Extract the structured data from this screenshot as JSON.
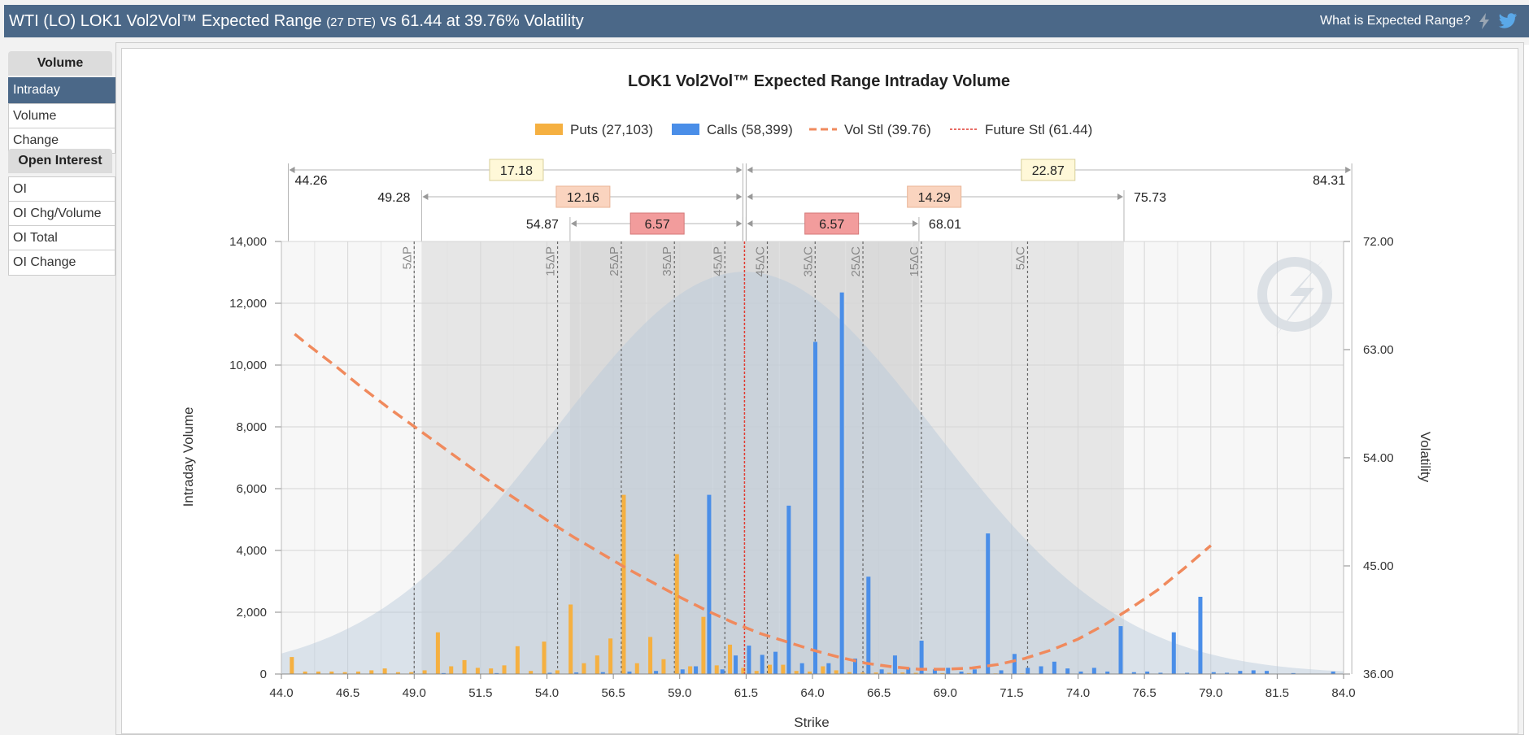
{
  "header": {
    "title_main": "WTI (LO) LOK1 Vol2Vol™ Expected Range ",
    "title_dte": "(27 DTE)",
    "title_rest": " vs 61.44 at 39.76% Volatility",
    "help_link": "What is Expected Range?",
    "icons": [
      "lightning-icon",
      "twitter-icon"
    ]
  },
  "sidebar": {
    "volume_header": "Volume",
    "volume_items": [
      "Intraday",
      "Volume",
      "Change"
    ],
    "active_item": "Intraday",
    "oi_header": "Open Interest",
    "oi_items": [
      "OI",
      "OI Chg/Volume",
      "OI Total",
      "OI Change"
    ]
  },
  "chart_data": {
    "type": "bar",
    "title": "LOK1 Vol2Vol™ Expected Range Intraday Volume",
    "xlabel": "Strike",
    "ylabel": "Intraday Volume",
    "y2label": "Volatility",
    "xlim": [
      44.0,
      84.0
    ],
    "ylim": [
      0,
      14000
    ],
    "y2lim": [
      36.0,
      72.0
    ],
    "x_ticks": [
      "44.0",
      "46.5",
      "49.0",
      "51.5",
      "54.0",
      "56.5",
      "59.0",
      "61.5",
      "64.0",
      "66.5",
      "69.0",
      "71.5",
      "74.0",
      "76.5",
      "79.0",
      "81.5",
      "84.0"
    ],
    "y_ticks": [
      "0",
      "2,000",
      "4,000",
      "6,000",
      "8,000",
      "10,000",
      "12,000",
      "14,000"
    ],
    "y2_ticks": [
      "36.00",
      "45.00",
      "54.00",
      "63.00",
      "72.00"
    ],
    "grid": true,
    "legend_position": "top",
    "legend": [
      {
        "label": "Puts (27,103)",
        "kind": "bar",
        "color": "#f5b041"
      },
      {
        "label": "Calls (58,399)",
        "kind": "bar",
        "color": "#4a8ee8"
      },
      {
        "label": "Vol Stl (39.76)",
        "kind": "dash",
        "color": "#f08a5d"
      },
      {
        "label": "Future Stl (61.44)",
        "kind": "dot",
        "color": "#e03c31"
      }
    ],
    "future_settle": 61.44,
    "series": [
      {
        "name": "Puts",
        "color": "#f5b041",
        "points": [
          [
            44.5,
            550
          ],
          [
            45.0,
            80
          ],
          [
            45.5,
            80
          ],
          [
            46.0,
            80
          ],
          [
            46.5,
            60
          ],
          [
            47.0,
            80
          ],
          [
            47.5,
            120
          ],
          [
            48.0,
            180
          ],
          [
            48.5,
            60
          ],
          [
            49.0,
            60
          ],
          [
            49.5,
            120
          ],
          [
            50.0,
            1350
          ],
          [
            50.5,
            250
          ],
          [
            51.0,
            450
          ],
          [
            51.5,
            200
          ],
          [
            52.0,
            180
          ],
          [
            52.5,
            280
          ],
          [
            53.0,
            900
          ],
          [
            53.5,
            100
          ],
          [
            54.0,
            1050
          ],
          [
            54.5,
            120
          ],
          [
            55.0,
            2250
          ],
          [
            55.5,
            350
          ],
          [
            56.0,
            600
          ],
          [
            56.5,
            1150
          ],
          [
            57.0,
            5800
          ],
          [
            57.5,
            350
          ],
          [
            58.0,
            1200
          ],
          [
            58.5,
            480
          ],
          [
            59.0,
            3880
          ],
          [
            59.5,
            250
          ],
          [
            60.0,
            1850
          ],
          [
            60.5,
            280
          ],
          [
            61.0,
            950
          ],
          [
            61.5,
            200
          ],
          [
            62.0,
            100
          ],
          [
            62.5,
            300
          ],
          [
            63.0,
            300
          ],
          [
            63.5,
            100
          ],
          [
            64.0,
            80
          ],
          [
            64.5,
            250
          ],
          [
            65.0,
            120
          ],
          [
            65.5,
            60
          ],
          [
            66.0,
            50
          ],
          [
            66.5,
            50
          ],
          [
            67.0,
            40
          ],
          [
            67.5,
            50
          ],
          [
            68.0,
            40
          ],
          [
            69.0,
            30
          ],
          [
            70.0,
            30
          ],
          [
            71.0,
            20
          ],
          [
            72.0,
            20
          ]
        ]
      },
      {
        "name": "Calls",
        "color": "#4a8ee8",
        "points": [
          [
            50.0,
            30
          ],
          [
            52.0,
            30
          ],
          [
            54.0,
            40
          ],
          [
            55.0,
            50
          ],
          [
            56.0,
            60
          ],
          [
            57.0,
            80
          ],
          [
            58.0,
            100
          ],
          [
            59.0,
            150
          ],
          [
            59.5,
            250
          ],
          [
            60.0,
            5800
          ],
          [
            60.5,
            150
          ],
          [
            61.0,
            600
          ],
          [
            61.5,
            920
          ],
          [
            62.0,
            620
          ],
          [
            62.5,
            720
          ],
          [
            63.0,
            5450
          ],
          [
            63.5,
            350
          ],
          [
            64.0,
            10750
          ],
          [
            64.5,
            350
          ],
          [
            65.0,
            12350
          ],
          [
            65.5,
            500
          ],
          [
            66.0,
            3150
          ],
          [
            66.5,
            150
          ],
          [
            67.0,
            600
          ],
          [
            67.5,
            200
          ],
          [
            68.0,
            1080
          ],
          [
            68.5,
            150
          ],
          [
            69.0,
            200
          ],
          [
            69.5,
            80
          ],
          [
            70.0,
            150
          ],
          [
            70.5,
            4550
          ],
          [
            71.0,
            120
          ],
          [
            71.5,
            650
          ],
          [
            72.0,
            200
          ],
          [
            72.5,
            250
          ],
          [
            73.0,
            400
          ],
          [
            73.5,
            180
          ],
          [
            74.0,
            80
          ],
          [
            74.5,
            200
          ],
          [
            75.0,
            80
          ],
          [
            75.5,
            1550
          ],
          [
            76.0,
            60
          ],
          [
            76.5,
            80
          ],
          [
            77.0,
            40
          ],
          [
            77.5,
            1350
          ],
          [
            78.0,
            40
          ],
          [
            78.5,
            2500
          ],
          [
            79.0,
            60
          ],
          [
            79.5,
            40
          ],
          [
            80.0,
            100
          ],
          [
            80.5,
            120
          ],
          [
            81.0,
            100
          ],
          [
            82.0,
            30
          ],
          [
            83.5,
            80
          ]
        ]
      },
      {
        "name": "Vol Stl",
        "axis": "y2",
        "color": "#f08a5d",
        "points": [
          [
            44.5,
            64.3
          ],
          [
            45.0,
            63.4
          ],
          [
            46.0,
            61.7
          ],
          [
            47.0,
            59.9
          ],
          [
            48.0,
            58.2
          ],
          [
            49.0,
            56.6
          ],
          [
            50.0,
            55.0
          ],
          [
            51.0,
            53.4
          ],
          [
            52.0,
            51.8
          ],
          [
            53.0,
            50.3
          ],
          [
            54.0,
            48.8
          ],
          [
            55.0,
            47.4
          ],
          [
            56.0,
            46.1
          ],
          [
            57.0,
            44.8
          ],
          [
            58.0,
            43.6
          ],
          [
            59.0,
            42.4
          ],
          [
            60.0,
            41.3
          ],
          [
            61.0,
            40.3
          ],
          [
            62.0,
            39.4
          ],
          [
            63.0,
            38.7
          ],
          [
            64.0,
            38.0
          ],
          [
            65.0,
            37.4
          ],
          [
            66.0,
            36.9
          ],
          [
            67.0,
            36.6
          ],
          [
            68.0,
            36.4
          ],
          [
            69.0,
            36.4
          ],
          [
            70.0,
            36.5
          ],
          [
            71.0,
            36.8
          ],
          [
            72.0,
            37.3
          ],
          [
            73.0,
            38.0
          ],
          [
            74.0,
            38.9
          ],
          [
            75.0,
            40.1
          ],
          [
            76.0,
            41.5
          ],
          [
            77.0,
            43.0
          ],
          [
            78.0,
            44.8
          ],
          [
            79.0,
            46.7
          ]
        ]
      }
    ],
    "delta_lines": [
      {
        "label": "5ΔP",
        "x": 49.0
      },
      {
        "label": "15ΔP",
        "x": 54.4
      },
      {
        "label": "25ΔP",
        "x": 56.8
      },
      {
        "label": "35ΔP",
        "x": 58.8
      },
      {
        "label": "45ΔP",
        "x": 60.7
      },
      {
        "label": "45ΔC",
        "x": 62.3
      },
      {
        "label": "35ΔC",
        "x": 64.1
      },
      {
        "label": "25ΔC",
        "x": 65.9
      },
      {
        "label": "15ΔC",
        "x": 68.1
      },
      {
        "label": "5ΔC",
        "x": 72.1
      }
    ],
    "ranges": [
      {
        "level": 3,
        "low": 44.26,
        "high": 84.31,
        "low_label": "44.26",
        "high_label": "84.31",
        "down": "17.18",
        "up": "22.87"
      },
      {
        "level": 2,
        "low": 49.28,
        "high": 75.73,
        "low_label": "49.28",
        "high_label": "75.73",
        "down": "12.16",
        "up": "14.29"
      },
      {
        "level": 1,
        "low": 54.87,
        "high": 68.01,
        "low_label": "54.87",
        "high_label": "68.01",
        "down": "6.57",
        "up": "6.57"
      }
    ]
  }
}
